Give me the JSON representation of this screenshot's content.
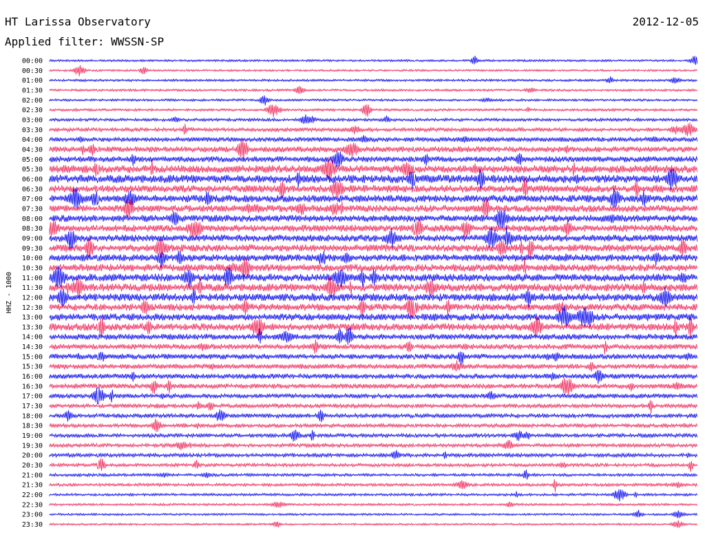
{
  "header": {
    "station_title": "HT Larissa Observatory",
    "date": "2012-12-05",
    "filter_label": "Applied filter: WWSSN-SP"
  },
  "chart_data": {
    "type": "line",
    "title": "HT Larissa Observatory",
    "ylabel": "HHZ - 1000",
    "colors": {
      "even_rows": "#0000ee",
      "odd_rows": "#ee2255"
    },
    "rows": [
      {
        "label": "00:00",
        "activity": 0.1
      },
      {
        "label": "00:30",
        "activity": 0.08
      },
      {
        "label": "01:00",
        "activity": 0.12
      },
      {
        "label": "01:30",
        "activity": 0.12
      },
      {
        "label": "02:00",
        "activity": 0.12
      },
      {
        "label": "02:30",
        "activity": 0.15
      },
      {
        "label": "03:00",
        "activity": 0.2
      },
      {
        "label": "03:30",
        "activity": 0.3
      },
      {
        "label": "04:00",
        "activity": 0.4
      },
      {
        "label": "04:30",
        "activity": 0.55
      },
      {
        "label": "05:00",
        "activity": 0.55
      },
      {
        "label": "05:30",
        "activity": 0.8
      },
      {
        "label": "06:00",
        "activity": 0.85
      },
      {
        "label": "06:30",
        "activity": 0.75
      },
      {
        "label": "07:00",
        "activity": 0.75
      },
      {
        "label": "07:30",
        "activity": 0.7
      },
      {
        "label": "08:00",
        "activity": 0.7
      },
      {
        "label": "08:30",
        "activity": 0.7
      },
      {
        "label": "09:00",
        "activity": 0.7
      },
      {
        "label": "09:30",
        "activity": 0.75
      },
      {
        "label": "10:00",
        "activity": 0.7
      },
      {
        "label": "10:30",
        "activity": 0.75
      },
      {
        "label": "11:00",
        "activity": 0.8
      },
      {
        "label": "11:30",
        "activity": 0.8
      },
      {
        "label": "12:00",
        "activity": 0.8
      },
      {
        "label": "12:30",
        "activity": 0.7
      },
      {
        "label": "13:00",
        "activity": 0.7
      },
      {
        "label": "13:30",
        "activity": 0.75
      },
      {
        "label": "14:00",
        "activity": 0.55
      },
      {
        "label": "14:30",
        "activity": 0.5
      },
      {
        "label": "15:00",
        "activity": 0.5
      },
      {
        "label": "15:30",
        "activity": 0.45
      },
      {
        "label": "16:00",
        "activity": 0.45
      },
      {
        "label": "16:30",
        "activity": 0.45
      },
      {
        "label": "17:00",
        "activity": 0.4
      },
      {
        "label": "17:30",
        "activity": 0.35
      },
      {
        "label": "18:00",
        "activity": 0.35
      },
      {
        "label": "18:30",
        "activity": 0.3
      },
      {
        "label": "19:00",
        "activity": 0.3
      },
      {
        "label": "19:30",
        "activity": 0.3
      },
      {
        "label": "20:00",
        "activity": 0.3
      },
      {
        "label": "20:30",
        "activity": 0.25
      },
      {
        "label": "21:00",
        "activity": 0.2
      },
      {
        "label": "21:30",
        "activity": 0.2
      },
      {
        "label": "22:00",
        "activity": 0.15
      },
      {
        "label": "22:30",
        "activity": 0.12
      },
      {
        "label": "23:00",
        "activity": 0.1
      },
      {
        "label": "23:30",
        "activity": 0.08
      }
    ]
  }
}
